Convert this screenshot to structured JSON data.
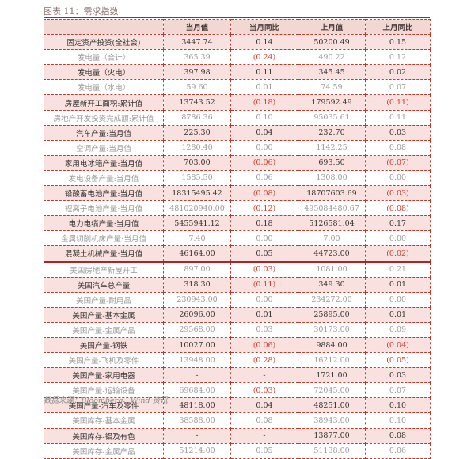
{
  "caption": "图表 11：需求指数",
  "source": "数据来源：Bloomberg、Wind 资讯",
  "headers": [
    "",
    "当月值",
    "当月同比",
    "上月值",
    "上月同比"
  ],
  "rows": [
    {
      "name": "固定资产投资(全社会)",
      "v1": "3447.74",
      "v2": "0.14",
      "v3": "50200.49",
      "v4": "0.15",
      "hl": true
    },
    {
      "name": "发电量（合计）",
      "v1": "365.39",
      "v2": "(0.24)",
      "v3": "490.22",
      "v4": "0.12",
      "neg2": true,
      "dim": true
    },
    {
      "name": "发电量（火电）",
      "v1": "397.98",
      "v2": "0.11",
      "v3": "345.45",
      "v4": "0.02",
      "hl": true
    },
    {
      "name": "发电量（水电）",
      "v1": "59.60",
      "v2": "0.01",
      "v3": "74.59",
      "v4": "0.07",
      "dim": true
    },
    {
      "name": "房屋新开工面积:累计值",
      "v1": "13743.52",
      "v2": "(0.18)",
      "v3": "179592.49",
      "v4": "(0.11)",
      "hl": true,
      "neg2": true,
      "neg4": true
    },
    {
      "name": "房地产开发投资完成额:累计值",
      "v1": "8786.36",
      "v2": "0.10",
      "v3": "95035.61",
      "v4": "0.11",
      "dim": true
    },
    {
      "name": "汽车产量:当月值",
      "v1": "225.30",
      "v2": "0.04",
      "v3": "232.70",
      "v4": "0.03",
      "hl": true
    },
    {
      "name": "空调产量:当月值",
      "v1": "1280.40",
      "v2": "0.00",
      "v3": "1142.25",
      "v4": "0.08",
      "dim": true
    },
    {
      "name": "家用电冰箱产量:当月值",
      "v1": "703.00",
      "v2": "(0.06)",
      "v3": "693.50",
      "v4": "(0.07)",
      "hl": true,
      "neg2": true,
      "neg4": true
    },
    {
      "name": "发电设备产量:当月值",
      "v1": "1585.50",
      "v2": "0.06",
      "v3": "1308.00",
      "v4": "0.00",
      "dim": true
    },
    {
      "name": "铅酸蓄电池产量:当月值",
      "v1": "18315495.42",
      "v2": "(0.08)",
      "v3": "18707603.69",
      "v4": "(0.03)",
      "hl": true,
      "neg2": true,
      "neg4": true
    },
    {
      "name": "锂离子电池产量:当月值",
      "v1": "481020940.00",
      "v2": "(0.12)",
      "v3": "495084480.67",
      "v4": "(0.08)",
      "dim": true,
      "neg2": true,
      "neg4": true
    },
    {
      "name": "电力电缆产量:当月值",
      "v1": "5455941.12",
      "v2": "0.18",
      "v3": "5126581.04",
      "v4": "0.17",
      "hl": true
    },
    {
      "name": "金属切削机床产量:当月值",
      "v1": "7.40",
      "v2": "0.00",
      "v3": "7.00",
      "v4": "0.00",
      "dim": true
    },
    {
      "name": "混凝土机械产量:当月值",
      "v1": "46164.00",
      "v2": "0.05",
      "v3": "44723.00",
      "v4": "(0.02)",
      "hl": true,
      "neg4": true
    },
    {
      "name": "美国房地产新屋开工",
      "v1": "897.00",
      "v2": "(0.03)",
      "v3": "1081.00",
      "v4": "0.21",
      "dim": true,
      "neg2": true,
      "sep": true
    },
    {
      "name": "美国汽车总产量",
      "v1": "318.30",
      "v2": "(0.11)",
      "v3": "349.30",
      "v4": "0.01",
      "hl": true,
      "neg2": true
    },
    {
      "name": "美国产量-耐用品",
      "v1": "230943.00",
      "v2": "0.00",
      "v3": "234272.00",
      "v4": "0.00",
      "dim": true
    },
    {
      "name": "美国产量-基本金属",
      "v1": "26096.00",
      "v2": "0.01",
      "v3": "25895.00",
      "v4": "0.01",
      "hl": true
    },
    {
      "name": "美国产量-金属产品",
      "v1": "29568.00",
      "v2": "0.03",
      "v3": "30173.00",
      "v4": "0.09",
      "dim": true
    },
    {
      "name": "美国产量-钢铁",
      "v1": "10027.00",
      "v2": "(0.06)",
      "v3": "9884.00",
      "v4": "(0.04)",
      "hl": true,
      "neg2": true,
      "neg4": true
    },
    {
      "name": "美国产量-飞机及零件",
      "v1": "13948.00",
      "v2": "(0.28)",
      "v3": "16212.00",
      "v4": "(0.05)",
      "dim": true,
      "neg2": true,
      "neg4": true
    },
    {
      "name": "美国产量-家用电器",
      "v1": "-",
      "v2": "-",
      "v3": "1721.00",
      "v4": "0.03",
      "hl": true
    },
    {
      "name": "美国产量-运输设备",
      "v1": "69684.00",
      "v2": "(0.03)",
      "v3": "72045.00",
      "v4": "0.07",
      "dim": true,
      "neg2": true
    },
    {
      "name": "美国产量-汽车及零件",
      "v1": "48118.00",
      "v2": "0.04",
      "v3": "48251.00",
      "v4": "0.10",
      "hl": true
    },
    {
      "name": "美国库存-基本金属",
      "v1": "38588.00",
      "v2": "0.08",
      "v3": "38943.00",
      "v4": "0.10",
      "dim": true
    },
    {
      "name": "美国库存-铝及有色",
      "v1": "-",
      "v2": "-",
      "v3": "13877.00",
      "v4": "0.08",
      "hl": true
    },
    {
      "name": "美国库存-金属产品",
      "v1": "51214.00",
      "v2": "0.05",
      "v3": "51138.00",
      "v4": "0.06",
      "dim": true
    }
  ]
}
